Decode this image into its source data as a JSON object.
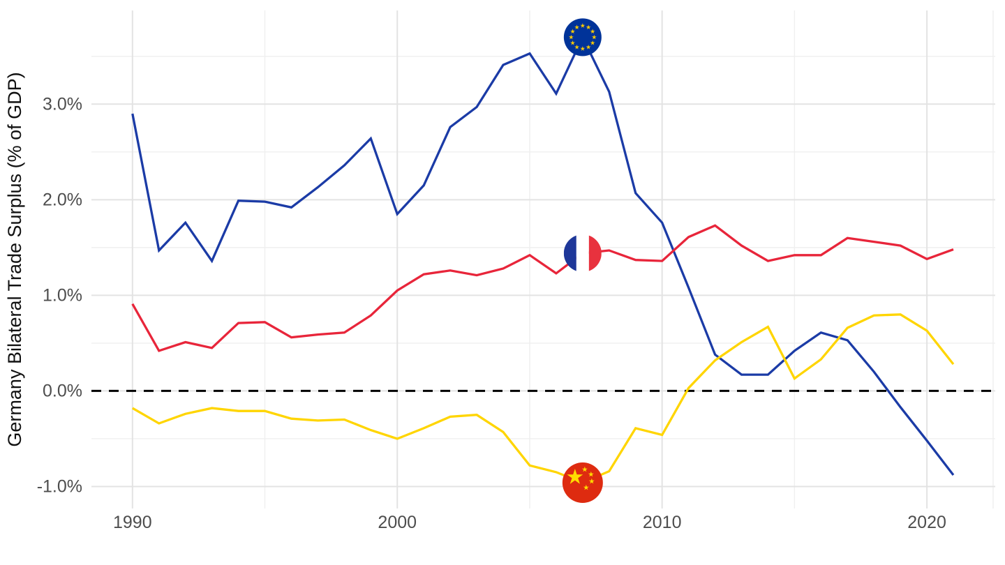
{
  "chart_data": {
    "type": "line",
    "title": "",
    "xlabel": "",
    "ylabel": "Germany Bilateral Trade Surplus (% of GDP)",
    "grid": "on",
    "legend_position": "none (series identified by flag markers at 2007)",
    "x_range": [
      1988.45,
      2022.58
    ],
    "y_range": [
      -1.23,
      3.98
    ],
    "x_ticks": [
      {
        "value": 1990,
        "label": "1990"
      },
      {
        "value": 2000,
        "label": "2000"
      },
      {
        "value": 2010,
        "label": "2010"
      },
      {
        "value": 2020,
        "label": "2020"
      }
    ],
    "x_minor_ticks": [
      1995,
      2005,
      2015,
      2022.5
    ],
    "y_ticks": [
      {
        "value": 3,
        "label": "3.0%"
      },
      {
        "value": 2,
        "label": "2.0%"
      },
      {
        "value": 1,
        "label": "1.0%"
      },
      {
        "value": 0,
        "label": "0.0%"
      },
      {
        "value": -1,
        "label": "-1.0%"
      }
    ],
    "y_minor_ticks": [
      3.5,
      2.5,
      1.5,
      0.5,
      -0.5
    ],
    "zero_line": {
      "value": 0,
      "style": "dashed",
      "color": "#000000"
    },
    "x": [
      1990,
      1991,
      1992,
      1993,
      1994,
      1995,
      1996,
      1997,
      1998,
      1999,
      2000,
      2001,
      2002,
      2003,
      2004,
      2005,
      2006,
      2007,
      2008,
      2009,
      2010,
      2011,
      2012,
      2013,
      2014,
      2015,
      2016,
      2017,
      2018,
      2019,
      2020,
      2021
    ],
    "series": [
      {
        "name": "European Union",
        "color": "#1b3ba6",
        "marker": {
          "icon": "eu-flag-icon",
          "year": 2007
        },
        "values": [
          2.9,
          1.47,
          1.76,
          1.36,
          1.99,
          1.98,
          1.92,
          2.13,
          2.36,
          2.64,
          1.85,
          2.15,
          2.76,
          2.97,
          3.41,
          3.53,
          3.11,
          3.7,
          3.13,
          2.07,
          1.76,
          1.08,
          0.38,
          0.17,
          0.17,
          0.42,
          0.61,
          0.53,
          0.2,
          -0.17,
          -0.52,
          -0.88
        ]
      },
      {
        "name": "France",
        "color": "#e8253a",
        "marker": {
          "icon": "france-flag-icon",
          "year": 2007
        },
        "values": [
          0.91,
          0.42,
          0.51,
          0.45,
          0.71,
          0.72,
          0.56,
          0.59,
          0.61,
          0.79,
          1.05,
          1.22,
          1.26,
          1.21,
          1.28,
          1.42,
          1.23,
          1.44,
          1.47,
          1.37,
          1.36,
          1.61,
          1.73,
          1.52,
          1.36,
          1.42,
          1.42,
          1.6,
          1.56,
          1.52,
          1.38,
          1.48
        ]
      },
      {
        "name": "China",
        "color": "#ffd500",
        "marker": {
          "icon": "china-flag-icon",
          "year": 2007
        },
        "values": [
          -0.18,
          -0.34,
          -0.24,
          -0.18,
          -0.21,
          -0.21,
          -0.29,
          -0.31,
          -0.3,
          -0.41,
          -0.5,
          -0.39,
          -0.27,
          -0.25,
          -0.43,
          -0.78,
          -0.85,
          -0.96,
          -0.84,
          -0.39,
          -0.46,
          0.03,
          0.32,
          0.51,
          0.67,
          0.13,
          0.33,
          0.66,
          0.79,
          0.8,
          0.63,
          0.28
        ]
      }
    ]
  },
  "style": {
    "grid_major_color": "#e3e3e3",
    "grid_minor_color": "#efefef",
    "tick_text_color": "#4d4d4d",
    "axis_title_color": "#111111",
    "background": "#ffffff",
    "flag_colors": {
      "eu_blue": "#003399",
      "eu_star_gold": "#ffcc00",
      "france_blue": "#1e3799",
      "france_white": "#ffffff",
      "france_red": "#e8323e",
      "china_red": "#de2b10",
      "china_star_gold": "#ffde00"
    }
  }
}
